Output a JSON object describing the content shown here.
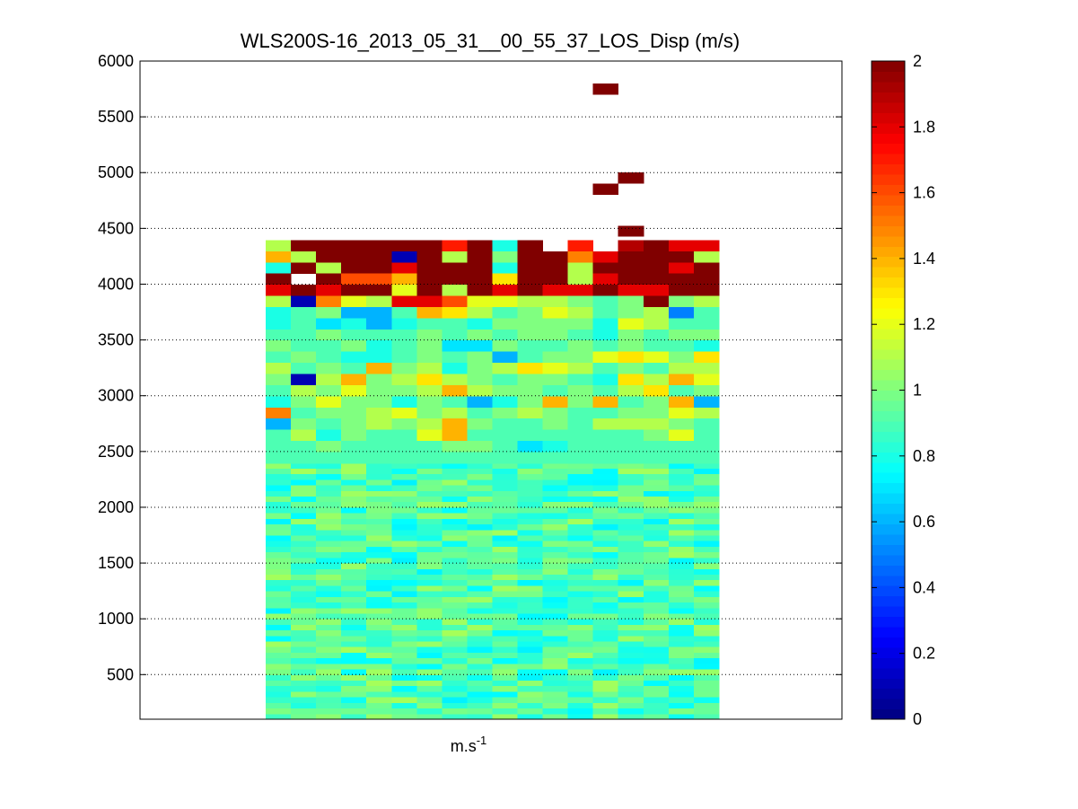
{
  "chart_data": {
    "type": "heatmap",
    "title": "WLS200S-16_2013_05_31__00_55_37_LOS_Disp (m/s)",
    "xlabel": "m.s",
    "xlabel_superscript": "-1",
    "ylabel": "",
    "ylim": [
      100,
      6000
    ],
    "yticks": [
      "500",
      "1000",
      "1500",
      "2000",
      "2500",
      "3000",
      "3500",
      "4000",
      "4500",
      "5000",
      "5500",
      "6000"
    ],
    "grid": "horizontal dotted",
    "colorbar": {
      "colormap": "jet",
      "clim": [
        0,
        2
      ],
      "ticks": [
        "0",
        "0.2",
        "0.4",
        "0.6",
        "0.8",
        "1",
        "1.2",
        "1.4",
        "1.6",
        "1.8",
        "2"
      ]
    },
    "columns": 18,
    "height_bin": 50,
    "heights": [
      4400,
      4300,
      4200,
      4100,
      4000,
      3900,
      3800,
      3700,
      3600,
      3500,
      3400,
      3300,
      3200,
      3100,
      3000,
      2900,
      2800,
      2700,
      2600,
      2500
    ],
    "values": [
      [
        1.1,
        2,
        2,
        2,
        2,
        2,
        2,
        1.7,
        2,
        0.8,
        2,
        null,
        1.7,
        null,
        1.9,
        2,
        1.8,
        1.8
      ],
      [
        1.4,
        1.1,
        2,
        2,
        2,
        0.1,
        2,
        1.1,
        2,
        1.0,
        2,
        2,
        1.5,
        1.8,
        2,
        2,
        2,
        1.1
      ],
      [
        0.8,
        2,
        1.1,
        2,
        2,
        1.8,
        2,
        2,
        2,
        0.8,
        2,
        2,
        1.1,
        2,
        2,
        2,
        1.8,
        2
      ],
      [
        2,
        null,
        2,
        1.6,
        1.6,
        1.4,
        2,
        2,
        2,
        1.3,
        2,
        2,
        1.1,
        1.8,
        2,
        2,
        2,
        2
      ],
      [
        1.8,
        2,
        1.8,
        2,
        2,
        1.2,
        2,
        1.1,
        2,
        1.8,
        2,
        1.8,
        1.8,
        2,
        1.8,
        1.8,
        2,
        2
      ],
      [
        1.1,
        0.1,
        1.5,
        1.2,
        1.1,
        1.8,
        1.8,
        1.6,
        1.2,
        1.2,
        1.1,
        1.1,
        1.0,
        0.9,
        1.0,
        2,
        1.0,
        1.1
      ],
      [
        0.8,
        0.9,
        1.0,
        0.6,
        0.6,
        0.9,
        1.4,
        1.3,
        1.1,
        0.9,
        1.0,
        1.2,
        1.1,
        0.9,
        1.0,
        1.1,
        0.5,
        0.9
      ],
      [
        0.8,
        0.9,
        0.7,
        0.8,
        0.6,
        0.8,
        0.9,
        0.9,
        0.8,
        1.0,
        1.0,
        1.0,
        1.0,
        0.8,
        1.2,
        1.1,
        0.9,
        0.9
      ],
      [
        0.9,
        0.9,
        1.0,
        0.9,
        0.9,
        0.9,
        1.0,
        0.9,
        1.0,
        0.9,
        1.0,
        1.0,
        0.9,
        0.8,
        1.0,
        0.9,
        1.0,
        1.0
      ],
      [
        1.0,
        0.9,
        0.9,
        1.0,
        0.8,
        0.9,
        1.0,
        0.7,
        0.7,
        1.0,
        0.9,
        0.9,
        1.0,
        0.9,
        1.0,
        0.9,
        0.9,
        0.8
      ],
      [
        0.9,
        1.0,
        0.9,
        0.8,
        0.8,
        0.9,
        1.0,
        0.9,
        1.0,
        0.6,
        0.9,
        1.0,
        1.0,
        1.2,
        1.3,
        1.2,
        1.0,
        1.3
      ],
      [
        1.1,
        0.9,
        1.0,
        0.9,
        1.4,
        1.0,
        1.1,
        0.8,
        1.0,
        1.1,
        1.3,
        1.2,
        1.1,
        0.9,
        1.0,
        0.9,
        1.1,
        1.1
      ],
      [
        1.0,
        0.1,
        1.1,
        1.4,
        1.0,
        1.1,
        1.3,
        1.1,
        1.0,
        0.9,
        1.0,
        1.0,
        0.9,
        0.8,
        1.3,
        1.1,
        1.4,
        1.2
      ],
      [
        0.9,
        1.1,
        1.0,
        1.2,
        1.0,
        1.0,
        1.1,
        1.4,
        1.1,
        1.0,
        1.0,
        0.9,
        1.0,
        0.9,
        1.1,
        1.3,
        0.9,
        1.0
      ],
      [
        0.8,
        1.0,
        1.2,
        1.0,
        1.0,
        0.8,
        1.0,
        0.9,
        0.6,
        0.8,
        1.0,
        1.4,
        1.0,
        1.4,
        0.9,
        1.0,
        1.4,
        0.6
      ],
      [
        1.5,
        0.9,
        1.0,
        1.0,
        1.1,
        1.2,
        1.0,
        1.1,
        0.9,
        1.0,
        1.1,
        1.0,
        0.9,
        0.9,
        1.0,
        1.0,
        1.2,
        1.1
      ],
      [
        0.6,
        1.0,
        0.9,
        1.0,
        1.1,
        1.0,
        1.1,
        1.4,
        1.0,
        0.9,
        0.9,
        1.0,
        0.9,
        1.1,
        1.1,
        1.1,
        1.0,
        0.9
      ],
      [
        0.9,
        1.1,
        0.8,
        1.0,
        0.9,
        0.9,
        1.2,
        1.4,
        0.9,
        0.9,
        0.9,
        0.9,
        0.9,
        0.9,
        0.9,
        1.0,
        1.2,
        0.9
      ],
      [
        0.9,
        0.9,
        1.0,
        0.9,
        0.9,
        0.9,
        0.9,
        1.0,
        1.0,
        0.9,
        0.7,
        0.8,
        0.9,
        0.9,
        0.9,
        0.9,
        0.9,
        0.9
      ],
      [
        0.9,
        0.9,
        0.9,
        0.9,
        0.9,
        0.9,
        0.9,
        0.9,
        0.9,
        0.9,
        0.9,
        0.9,
        0.9,
        0.9,
        0.9,
        0.9,
        0.9,
        0.9
      ]
    ],
    "high_cells": [
      {
        "height": 5750,
        "column": 13,
        "value": 2
      },
      {
        "height": 4950,
        "column": 14,
        "value": 2
      },
      {
        "height": 4850,
        "column": 13,
        "value": 2
      },
      {
        "height": 4475,
        "column": 14,
        "value": 2
      }
    ],
    "lower_region": {
      "from_height": 100,
      "to_height": 2450,
      "typical_values": [
        0.8,
        0.9,
        1.0
      ]
    }
  }
}
